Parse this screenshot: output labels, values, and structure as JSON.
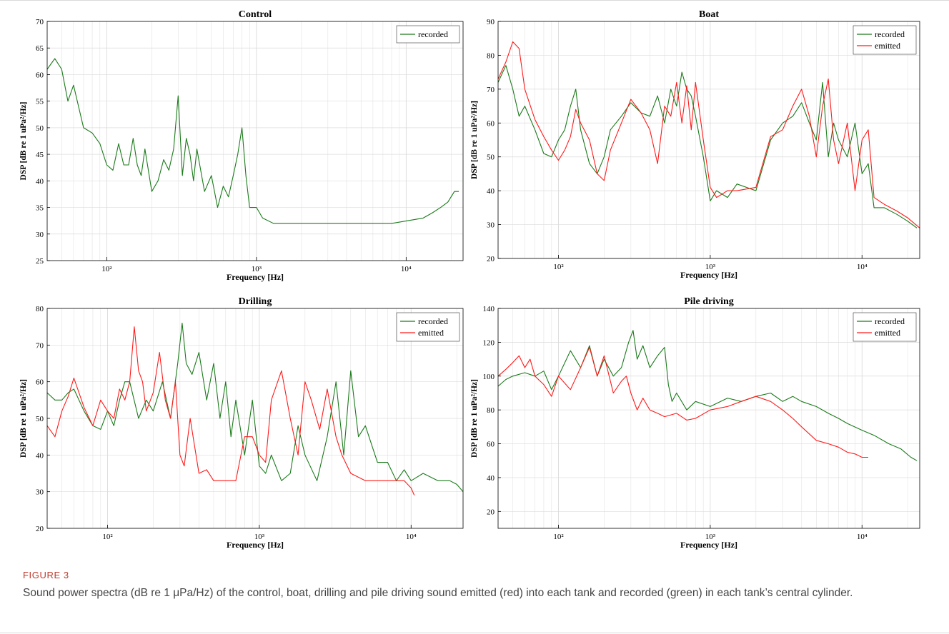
{
  "figure": {
    "label": "FIGURE 3",
    "caption": "Sound power spectra (dB re 1 μPa/Hz) of the control, boat, drilling and pile driving sound emitted (red) into each tank and recorded (green) in each tank’s central cylinder."
  },
  "colors": {
    "recorded": "#1a7a1a",
    "emitted": "#ff1a1a",
    "grid": "#e3e3e3",
    "axis": "#000000"
  },
  "chart_data": [
    {
      "type": "line",
      "title": "Control",
      "xlabel": "Frequency [Hz]",
      "ylabel": "DSP [dB re 1 uPa²/Hz]",
      "xscale": "log",
      "xlim": [
        40,
        24000
      ],
      "ylim": [
        25,
        70
      ],
      "yticks": [
        25,
        30,
        35,
        40,
        45,
        50,
        55,
        60,
        65,
        70
      ],
      "xticks": [
        "10²",
        "10³",
        "10⁴"
      ],
      "grid": true,
      "legend": "top-right",
      "series": [
        {
          "name": "recorded",
          "color": "#1a7a1a",
          "x": [
            40,
            45,
            50,
            55,
            60,
            70,
            80,
            90,
            100,
            110,
            120,
            130,
            140,
            150,
            160,
            170,
            180,
            200,
            220,
            240,
            260,
            280,
            300,
            320,
            340,
            360,
            380,
            400,
            450,
            500,
            550,
            600,
            650,
            700,
            750,
            800,
            850,
            900,
            1000,
            1100,
            1300,
            2000,
            4000,
            8000,
            13000,
            15000,
            17000,
            19000,
            21000,
            22500
          ],
          "y": [
            61,
            63,
            61,
            55,
            58,
            50,
            49,
            47,
            43,
            42,
            47,
            43,
            43,
            48,
            43,
            41,
            46,
            38,
            40,
            44,
            42,
            46,
            56,
            41,
            48,
            45,
            40,
            46,
            38,
            41,
            35,
            39,
            37,
            41,
            45,
            50,
            41,
            35,
            35,
            33,
            32,
            32,
            32,
            32,
            33,
            34,
            35,
            36,
            38,
            38
          ]
        }
      ]
    },
    {
      "type": "line",
      "title": "Boat",
      "xlabel": "Frequency [Hz]",
      "ylabel": "DSP [dB re 1 uPa²/Hz]",
      "xscale": "log",
      "xlim": [
        40,
        24000
      ],
      "ylim": [
        20,
        90
      ],
      "yticks": [
        20,
        30,
        40,
        50,
        60,
        70,
        80,
        90
      ],
      "xticks": [
        "10²",
        "10³",
        "10⁴"
      ],
      "grid": true,
      "legend": "top-right",
      "series": [
        {
          "name": "recorded",
          "color": "#1a7a1a",
          "x": [
            40,
            45,
            50,
            55,
            60,
            70,
            80,
            90,
            100,
            110,
            120,
            130,
            140,
            160,
            180,
            200,
            220,
            260,
            300,
            350,
            400,
            450,
            500,
            550,
            600,
            650,
            700,
            750,
            800,
            900,
            1000,
            1100,
            1300,
            1500,
            2000,
            2500,
            3000,
            3500,
            4000,
            4500,
            5000,
            5500,
            6000,
            6500,
            7000,
            8000,
            9000,
            10000,
            11000,
            12000,
            14000,
            17000,
            20000,
            23000
          ],
          "y": [
            72,
            77,
            70,
            62,
            65,
            58,
            51,
            50,
            55,
            58,
            65,
            70,
            58,
            48,
            45,
            50,
            58,
            62,
            66,
            63,
            62,
            68,
            60,
            70,
            65,
            75,
            70,
            68,
            62,
            50,
            37,
            40,
            38,
            42,
            40,
            55,
            60,
            62,
            66,
            60,
            55,
            72,
            50,
            60,
            55,
            50,
            60,
            45,
            48,
            35,
            35,
            33,
            31,
            29
          ]
        },
        {
          "name": "emitted",
          "color": "#ff1a1a",
          "x": [
            40,
            45,
            50,
            55,
            60,
            70,
            80,
            90,
            100,
            110,
            120,
            130,
            140,
            160,
            180,
            200,
            220,
            260,
            300,
            350,
            400,
            450,
            500,
            550,
            600,
            650,
            700,
            750,
            800,
            900,
            1000,
            1100,
            1300,
            1500,
            2000,
            2500,
            3000,
            3500,
            4000,
            4500,
            5000,
            5500,
            6000,
            6500,
            7000,
            8000,
            9000,
            10000,
            11000,
            12000,
            14000,
            17000,
            20000,
            24000
          ],
          "y": [
            73,
            78,
            84,
            82,
            70,
            61,
            56,
            52,
            49,
            52,
            56,
            64,
            60,
            55,
            45,
            43,
            52,
            60,
            67,
            63,
            58,
            48,
            65,
            62,
            72,
            60,
            71,
            58,
            72,
            55,
            41,
            38,
            40,
            40,
            41,
            56,
            58,
            65,
            70,
            62,
            50,
            65,
            73,
            55,
            48,
            60,
            40,
            55,
            58,
            38,
            36,
            34,
            32,
            29
          ]
        }
      ]
    },
    {
      "type": "line",
      "title": "Drilling",
      "xlabel": "Frequency [Hz]",
      "ylabel": "DSP [dB re 1 uPa²/Hz]",
      "xscale": "log",
      "xlim": [
        40,
        22000
      ],
      "ylim": [
        20,
        80
      ],
      "yticks": [
        20,
        30,
        40,
        50,
        60,
        70,
        80
      ],
      "xticks": [
        "10²",
        "10³",
        "10⁴"
      ],
      "grid": true,
      "legend": "top-right",
      "series": [
        {
          "name": "recorded",
          "color": "#1a7a1a",
          "x": [
            40,
            45,
            50,
            55,
            60,
            70,
            80,
            90,
            100,
            110,
            120,
            130,
            140,
            160,
            180,
            200,
            230,
            260,
            290,
            310,
            330,
            360,
            400,
            450,
            500,
            550,
            600,
            650,
            700,
            800,
            900,
            1000,
            1100,
            1200,
            1400,
            1600,
            1800,
            2000,
            2400,
            2800,
            3200,
            3600,
            4000,
            4500,
            5000,
            6000,
            7000,
            8000,
            9000,
            10000,
            12000,
            15000,
            18000,
            20000,
            22000
          ],
          "y": [
            57,
            55,
            55,
            57,
            58,
            52,
            48,
            47,
            52,
            48,
            55,
            60,
            60,
            50,
            55,
            52,
            60,
            50,
            65,
            76,
            65,
            62,
            68,
            55,
            65,
            50,
            60,
            45,
            55,
            40,
            55,
            37,
            35,
            40,
            33,
            35,
            48,
            40,
            33,
            45,
            60,
            40,
            63,
            45,
            48,
            38,
            38,
            33,
            36,
            33,
            35,
            33,
            33,
            32,
            30
          ]
        },
        {
          "name": "emitted",
          "color": "#ff1a1a",
          "x": [
            40,
            45,
            50,
            55,
            60,
            70,
            80,
            90,
            100,
            110,
            120,
            130,
            140,
            150,
            160,
            170,
            180,
            200,
            220,
            240,
            260,
            280,
            300,
            320,
            350,
            400,
            450,
            500,
            600,
            700,
            800,
            900,
            1000,
            1100,
            1200,
            1400,
            1600,
            1800,
            2000,
            2200,
            2500,
            2800,
            3200,
            3500,
            4000,
            5000,
            6000,
            7000,
            8000,
            9000,
            10000,
            10500
          ],
          "y": [
            48,
            45,
            52,
            56,
            61,
            53,
            48,
            55,
            52,
            50,
            58,
            55,
            60,
            75,
            63,
            60,
            52,
            57,
            68,
            55,
            50,
            60,
            40,
            37,
            50,
            35,
            36,
            33,
            33,
            33,
            45,
            45,
            40,
            38,
            55,
            63,
            50,
            40,
            60,
            55,
            47,
            58,
            45,
            40,
            35,
            33,
            33,
            33,
            33,
            33,
            31,
            29
          ]
        }
      ]
    },
    {
      "type": "line",
      "title": "Pile driving",
      "xlabel": "Frequency [Hz]",
      "ylabel": "DSP [dB re 1 uPa²/Hz]",
      "xscale": "log",
      "xlim": [
        40,
        24000
      ],
      "ylim": [
        10,
        140
      ],
      "yticks": [
        20,
        40,
        60,
        80,
        100,
        120,
        140
      ],
      "xticks": [
        "10²",
        "10³",
        "10⁴"
      ],
      "grid": true,
      "legend": "top-right",
      "series": [
        {
          "name": "recorded",
          "color": "#1a7a1a",
          "x": [
            40,
            45,
            50,
            60,
            70,
            80,
            90,
            100,
            120,
            140,
            160,
            180,
            200,
            230,
            260,
            290,
            310,
            330,
            360,
            400,
            450,
            500,
            530,
            560,
            600,
            700,
            800,
            1000,
            1300,
            1600,
            2000,
            2500,
            3000,
            3500,
            4000,
            5000,
            6000,
            7000,
            8000,
            10000,
            12000,
            15000,
            18000,
            21000,
            23000
          ],
          "y": [
            94,
            98,
            100,
            102,
            100,
            103,
            92,
            100,
            115,
            105,
            118,
            100,
            110,
            100,
            105,
            120,
            127,
            110,
            118,
            105,
            112,
            117,
            95,
            85,
            90,
            80,
            85,
            82,
            87,
            85,
            88,
            90,
            85,
            88,
            85,
            82,
            78,
            75,
            72,
            68,
            65,
            60,
            57,
            52,
            50
          ]
        },
        {
          "name": "emitted",
          "color": "#ff1a1a",
          "x": [
            40,
            45,
            50,
            55,
            60,
            65,
            70,
            80,
            90,
            100,
            120,
            140,
            160,
            180,
            200,
            230,
            260,
            280,
            300,
            330,
            360,
            400,
            450,
            500,
            600,
            700,
            800,
            1000,
            1300,
            1600,
            2000,
            2500,
            3000,
            3500,
            4000,
            5000,
            6000,
            7000,
            8000,
            9000,
            10000,
            11000
          ],
          "y": [
            100,
            104,
            108,
            112,
            105,
            110,
            100,
            95,
            88,
            100,
            92,
            105,
            117,
            100,
            112,
            90,
            97,
            100,
            90,
            80,
            87,
            80,
            78,
            76,
            78,
            74,
            75,
            80,
            82,
            85,
            88,
            85,
            80,
            75,
            70,
            62,
            60,
            58,
            55,
            54,
            52,
            52
          ]
        }
      ]
    }
  ]
}
